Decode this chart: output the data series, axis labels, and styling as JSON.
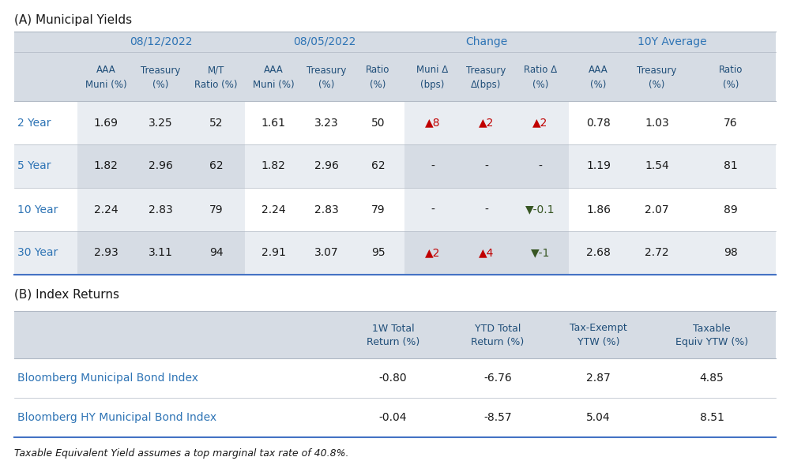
{
  "title_a": "(A) Municipal Yields",
  "title_b": "(B) Index Returns",
  "footnote": "Taxable Equivalent Yield assumes a top marginal tax rate of 40.8%.",
  "section_a": {
    "group_headers": [
      "08/12/2022",
      "08/05/2022",
      "Change",
      "10Y Average"
    ],
    "col_headers_line1": [
      "",
      "AAA",
      "Treasury",
      "M/T",
      "AAA",
      "Treasury",
      "Ratio",
      "Muni Δ",
      "Treasury",
      "Ratio Δ",
      "AAA",
      "Treasury",
      "Ratio"
    ],
    "col_headers_line2": [
      "",
      "Muni (%)",
      "(%)",
      "Ratio (%)",
      "Muni (%)",
      "(%)",
      "(%)",
      "(bps)",
      "Δ(bps)",
      "(%)",
      "(%)",
      "(%)",
      "(%)"
    ],
    "rows": [
      {
        "label": "2 Year",
        "values": [
          "1.69",
          "3.25",
          "52",
          "1.61",
          "3.23",
          "50",
          "▲8",
          "▲2",
          "▲2",
          "0.78",
          "1.03",
          "76"
        ],
        "change_colors": [
          "red",
          "red",
          "red"
        ]
      },
      {
        "label": "5 Year",
        "values": [
          "1.82",
          "2.96",
          "62",
          "1.82",
          "2.96",
          "62",
          "-",
          "-",
          "-",
          "1.19",
          "1.54",
          "81"
        ],
        "change_colors": [
          "black",
          "black",
          "black"
        ]
      },
      {
        "label": "10 Year",
        "values": [
          "2.24",
          "2.83",
          "79",
          "2.24",
          "2.83",
          "79",
          "-",
          "-",
          "▼-0.1",
          "1.86",
          "2.07",
          "89"
        ],
        "change_colors": [
          "black",
          "black",
          "green"
        ]
      },
      {
        "label": "30 Year",
        "values": [
          "2.93",
          "3.11",
          "94",
          "2.91",
          "3.07",
          "95",
          "▲2",
          "▲4",
          "▼-1",
          "2.68",
          "2.72",
          "98"
        ],
        "change_colors": [
          "red",
          "red",
          "green"
        ]
      }
    ]
  },
  "section_b": {
    "col_headers": [
      "",
      "1W Total\nReturn (%)",
      "YTD Total\nReturn (%)",
      "Tax-Exempt\nYTW (%)",
      "Taxable\nEquiv YTW (%)"
    ],
    "rows": [
      {
        "label": "Bloomberg Municipal Bond Index",
        "values": [
          "-0.80",
          "-6.76",
          "2.87",
          "4.85"
        ]
      },
      {
        "label": "Bloomberg HY Municipal Bond Index",
        "values": [
          "-0.04",
          "-8.57",
          "5.04",
          "8.51"
        ]
      }
    ]
  },
  "colors": {
    "header_blue": "#1F4E79",
    "header_group_blue": "#2E74B5",
    "row_label_blue": "#2E74B5",
    "bg_header": "#D6DCE4",
    "bg_odd": "#FFFFFF",
    "bg_even": "#E9EDF2",
    "text_black": "#1a1a1a",
    "red_up": "#C00000",
    "green_down": "#375623",
    "line_light": "#B0B8C4",
    "line_dark": "#4472C4"
  }
}
